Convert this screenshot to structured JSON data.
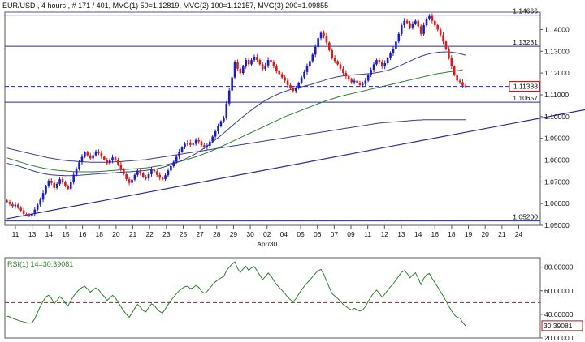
{
  "header": {
    "symbol": "EUR/USD",
    "timeframe": "4 hours",
    "bars": "# 171 / 401",
    "ma1": "MVG(1) 50=1.12819",
    "ma2": "MVG(2) 100=1.12157",
    "ma3": "MVG(3) 200=1.09855"
  },
  "colors": {
    "up": "#1c1cc8",
    "down": "#d81c1c",
    "ma50": "#3b3b9a",
    "ma100": "#2f7d2f",
    "ma200": "#3a3a8f",
    "rsi": "#2f7d2f",
    "hline": "#2a2a9a",
    "rsi_ref": "#c01010"
  },
  "chart_data": [
    {
      "type": "candlestick",
      "title": "",
      "ylim": [
        1.05,
        1.148
      ],
      "y_ticks": [
        "1.14000",
        "1.13000",
        "1.12000",
        "1.11000",
        "1.10000",
        "1.09000",
        "1.08000",
        "1.07000",
        "1.06000",
        "1.05000"
      ],
      "x_ticks": [
        "11",
        "13",
        "14",
        "15",
        "16",
        "18",
        "20",
        "21",
        "22",
        "23",
        "25",
        "27",
        "28",
        "29",
        "30",
        "02",
        "04",
        "05",
        "06",
        "07",
        "09",
        "11",
        "12",
        "13",
        "14",
        "16",
        "18",
        "19",
        "20",
        "21",
        "24"
      ],
      "x_sublabel": "Apr/30",
      "levels": [
        {
          "label": "1.14666",
          "value": 1.14666,
          "style": "solid"
        },
        {
          "label": "1.13231",
          "value": 1.13231,
          "style": "solid"
        },
        {
          "label": "1.11388",
          "value": 1.11388,
          "style": "dashed",
          "boxed": true
        },
        {
          "label": "1.10657",
          "value": 1.10657,
          "style": "solid"
        },
        {
          "label": "1.05200",
          "value": 1.052,
          "style": "solid"
        }
      ],
      "trendline": {
        "x": [
          0,
          222
        ],
        "y": [
          1.053,
          1.1065
        ]
      },
      "close": [
        1.0608,
        1.0598,
        1.0588,
        1.0595,
        1.058,
        1.0568,
        1.0552,
        1.0548,
        1.0545,
        1.0552,
        1.0572,
        1.0595,
        1.0618,
        1.0648,
        1.068,
        1.0705,
        1.0695,
        1.0672,
        1.069,
        1.0712,
        1.07,
        1.068,
        1.0668,
        1.07,
        1.0732,
        1.076,
        1.079,
        1.0815,
        1.0835,
        1.0822,
        1.0808,
        1.0822,
        1.084,
        1.0832,
        1.0815,
        1.0802,
        1.0785,
        1.0798,
        1.0812,
        1.08,
        1.078,
        1.0758,
        1.0735,
        1.0712,
        1.0695,
        1.071,
        1.0732,
        1.0752,
        1.074,
        1.0722,
        1.0715,
        1.0735,
        1.0755,
        1.0748,
        1.0732,
        1.0718,
        1.0712,
        1.073,
        1.0752,
        1.0772,
        1.0792,
        1.0815,
        1.0838,
        1.0858,
        1.0875,
        1.088,
        1.087,
        1.0875,
        1.0892,
        1.0885,
        1.0868,
        1.0858,
        1.0865,
        1.0885,
        1.0908,
        1.0932,
        1.0955,
        1.0978,
        1.0995,
        1.106,
        1.112,
        1.118,
        1.125,
        1.122,
        1.12,
        1.123,
        1.126,
        1.124,
        1.126,
        1.1275,
        1.126,
        1.124,
        1.1218,
        1.1235,
        1.126,
        1.125,
        1.123,
        1.121,
        1.1195,
        1.118,
        1.1165,
        1.1145,
        1.113,
        1.1118,
        1.113,
        1.1155,
        1.118,
        1.1205,
        1.123,
        1.1255,
        1.1285,
        1.132,
        1.136,
        1.1385,
        1.137,
        1.134,
        1.1305,
        1.127,
        1.1255,
        1.124,
        1.122,
        1.12,
        1.1185,
        1.117,
        1.1158,
        1.1165,
        1.1155,
        1.1145,
        1.115,
        1.1165,
        1.119,
        1.1215,
        1.124,
        1.126,
        1.125,
        1.123,
        1.1245,
        1.1268,
        1.129,
        1.1312,
        1.1345,
        1.138,
        1.142,
        1.144,
        1.143,
        1.141,
        1.1425,
        1.144,
        1.1415,
        1.138,
        1.142,
        1.145,
        1.1462,
        1.144,
        1.142,
        1.14,
        1.1375,
        1.1345,
        1.131,
        1.127,
        1.123,
        1.119,
        1.1165,
        1.1158,
        1.1142,
        1.1139
      ],
      "ma50": [
        1.0785,
        1.0782,
        1.0779,
        1.0776,
        1.0773,
        1.0769,
        1.0765,
        1.0761,
        1.0756,
        1.0752,
        1.0748,
        1.0744,
        1.0741,
        1.0738,
        1.0736,
        1.0734,
        1.0732,
        1.0731,
        1.073,
        1.0729,
        1.0729,
        1.0728,
        1.0728,
        1.0728,
        1.0729,
        1.0729,
        1.073,
        1.0731,
        1.0732,
        1.0733,
        1.0734,
        1.0735,
        1.0736,
        1.0737,
        1.0738,
        1.0738,
        1.0739,
        1.074,
        1.0741,
        1.0742,
        1.0743,
        1.0744,
        1.0745,
        1.0746,
        1.0746,
        1.0747,
        1.0748,
        1.0749,
        1.075,
        1.0751,
        1.0752,
        1.0754,
        1.0756,
        1.0758,
        1.076,
        1.0763,
        1.0766,
        1.077,
        1.0774,
        1.0778,
        1.0783,
        1.0788,
        1.0793,
        1.0798,
        1.0804,
        1.081,
        1.0816,
        1.0823,
        1.083,
        1.0838,
        1.0846,
        1.0855,
        1.0864,
        1.0873,
        1.0883,
        1.0893,
        1.0903,
        1.0913,
        1.0924,
        1.0935,
        1.0946,
        1.0957,
        1.0968,
        1.0979,
        1.099,
        1.1,
        1.101,
        1.102,
        1.103,
        1.104,
        1.1049,
        1.1058,
        1.1066,
        1.1074,
        1.1081,
        1.1088,
        1.1094,
        1.11,
        1.1106,
        1.1111,
        1.1116,
        1.112,
        1.1124,
        1.1128,
        1.1131,
        1.1134,
        1.1137,
        1.114,
        1.1143,
        1.1146,
        1.115,
        1.1154,
        1.1158,
        1.1162,
        1.1166,
        1.117,
        1.1174,
        1.1177,
        1.118,
        1.1183,
        1.1185,
        1.1187,
        1.1189,
        1.119,
        1.1191,
        1.1192,
        1.1193,
        1.1194,
        1.1195,
        1.1196,
        1.1197,
        1.1198,
        1.12,
        1.1202,
        1.1204,
        1.1207,
        1.121,
        1.1213,
        1.1217,
        1.1221,
        1.1226,
        1.1231,
        1.1237,
        1.1243,
        1.1249,
        1.1255,
        1.1261,
        1.1267,
        1.1272,
        1.1277,
        1.1281,
        1.1285,
        1.1288,
        1.1291,
        1.1293,
        1.1295,
        1.1296,
        1.1297,
        1.1297,
        1.1297,
        1.1296,
        1.1294,
        1.1292,
        1.1289,
        1.1286,
        1.1282
      ],
      "ma100": [
        1.081,
        1.0806,
        1.0802,
        1.0798,
        1.0794,
        1.079,
        1.0786,
        1.0782,
        1.0778,
        1.0775,
        1.0772,
        1.0769,
        1.0766,
        1.0763,
        1.0761,
        1.0759,
        1.0757,
        1.0755,
        1.0753,
        1.0752,
        1.0751,
        1.075,
        1.0749,
        1.0748,
        1.0747,
        1.0747,
        1.0746,
        1.0746,
        1.0746,
        1.0746,
        1.0746,
        1.0746,
        1.0747,
        1.0747,
        1.0748,
        1.0749,
        1.075,
        1.0751,
        1.0752,
        1.0753,
        1.0754,
        1.0755,
        1.0756,
        1.0757,
        1.0758,
        1.0759,
        1.076,
        1.0761,
        1.0762,
        1.0763,
        1.0764,
        1.0766,
        1.0768,
        1.077,
        1.0772,
        1.0774,
        1.0776,
        1.0778,
        1.0781,
        1.0784,
        1.0787,
        1.079,
        1.0793,
        1.0796,
        1.0799,
        1.0803,
        1.0807,
        1.0811,
        1.0815,
        1.0819,
        1.0824,
        1.0829,
        1.0834,
        1.0839,
        1.0844,
        1.0849,
        1.0855,
        1.0861,
        1.0867,
        1.0873,
        1.0879,
        1.0885,
        1.0891,
        1.0897,
        1.0903,
        1.0909,
        1.0915,
        1.0921,
        1.0927,
        1.0933,
        1.0939,
        1.0945,
        1.0951,
        1.0957,
        1.0963,
        1.0969,
        1.0975,
        1.0981,
        1.0987,
        1.0993,
        1.0999,
        1.1004,
        1.1009,
        1.1014,
        1.1019,
        1.1024,
        1.1029,
        1.1034,
        1.1039,
        1.1044,
        1.1049,
        1.1054,
        1.1059,
        1.1064,
        1.1069,
        1.1073,
        1.1077,
        1.1081,
        1.1085,
        1.1089,
        1.1093,
        1.1096,
        1.1099,
        1.1102,
        1.1105,
        1.1108,
        1.1111,
        1.1114,
        1.1117,
        1.112,
        1.1123,
        1.1126,
        1.1129,
        1.1132,
        1.1135,
        1.1138,
        1.1141,
        1.1144,
        1.1147,
        1.115,
        1.1153,
        1.1156,
        1.1159,
        1.1162,
        1.1165,
        1.1168,
        1.1171,
        1.1174,
        1.1177,
        1.118,
        1.1183,
        1.1186,
        1.1189,
        1.1192,
        1.1195,
        1.1197,
        1.1199,
        1.1201,
        1.1203,
        1.1205,
        1.1207,
        1.1209,
        1.1211,
        1.1213,
        1.1215
      ],
      "ma200": [
        1.0855,
        1.0852,
        1.0849,
        1.0846,
        1.0843,
        1.084,
        1.0837,
        1.0834,
        1.0831,
        1.0828,
        1.0825,
        1.0822,
        1.0819,
        1.0816,
        1.0813,
        1.081,
        1.0808,
        1.0806,
        1.0804,
        1.0802,
        1.08,
        1.0798,
        1.0797,
        1.0796,
        1.0795,
        1.0794,
        1.0793,
        1.0792,
        1.0791,
        1.0791,
        1.079,
        1.079,
        1.079,
        1.079,
        1.079,
        1.079,
        1.079,
        1.0791,
        1.0791,
        1.0792,
        1.0792,
        1.0793,
        1.0794,
        1.0795,
        1.0796,
        1.0797,
        1.0798,
        1.0799,
        1.08,
        1.0801,
        1.0802,
        1.0804,
        1.0806,
        1.0808,
        1.081,
        1.0812,
        1.0814,
        1.0816,
        1.0818,
        1.082,
        1.0822,
        1.0824,
        1.0826,
        1.0828,
        1.083,
        1.0832,
        1.0834,
        1.0836,
        1.0838,
        1.084,
        1.0842,
        1.0844,
        1.0846,
        1.0848,
        1.085,
        1.0852,
        1.0854,
        1.0856,
        1.0858,
        1.086,
        1.0862,
        1.0864,
        1.0866,
        1.0868,
        1.087,
        1.0872,
        1.0874,
        1.0876,
        1.0878,
        1.088,
        1.0882,
        1.0884,
        1.0886,
        1.0888,
        1.089,
        1.0892,
        1.0894,
        1.0896,
        1.0898,
        1.09,
        1.0902,
        1.0904,
        1.0906,
        1.0908,
        1.091,
        1.0912,
        1.0914,
        1.0916,
        1.0918,
        1.092,
        1.0922,
        1.0924,
        1.0926,
        1.0928,
        1.093,
        1.0932,
        1.0934,
        1.0936,
        1.0938,
        1.094,
        1.0942,
        1.0944,
        1.0946,
        1.0948,
        1.095,
        1.0952,
        1.0954,
        1.0956,
        1.0958,
        1.096,
        1.0962,
        1.0964,
        1.0966,
        1.0968,
        1.097,
        1.0971,
        1.0972,
        1.0973,
        1.0974,
        1.0975,
        1.0976,
        1.0977,
        1.0978,
        1.0979,
        1.098,
        1.0981,
        1.0982,
        1.0983,
        1.0984,
        1.0984,
        1.0985,
        1.0985,
        1.0985,
        1.0985,
        1.0985,
        1.0985,
        1.0985,
        1.0985,
        1.0985,
        1.0985,
        1.0985,
        1.0985,
        1.0985,
        1.0985,
        1.0985,
        1.0985
      ]
    },
    {
      "type": "line",
      "title": "RSI(1) 14=30.39081",
      "ylim": [
        20,
        88
      ],
      "y_ticks": [
        "80.00000",
        "60.00000",
        "40.00000",
        "20.00000"
      ],
      "reference_level": 50,
      "last_value_label": "30.39081",
      "values": [
        38.5,
        37.8,
        36.7,
        35.8,
        35.0,
        34.3,
        33.6,
        33.0,
        32.5,
        32.9,
        36.2,
        41.5,
        46.8,
        51.2,
        54.8,
        56.2,
        53.5,
        49.0,
        51.8,
        55.0,
        53.0,
        49.5,
        47.3,
        51.8,
        55.6,
        58.4,
        61.0,
        62.8,
        63.9,
        61.5,
        58.8,
        60.7,
        62.5,
        60.9,
        57.6,
        55.0,
        51.8,
        53.9,
        56.1,
        54.0,
        50.3,
        46.6,
        43.0,
        40.0,
        37.6,
        41.0,
        45.2,
        48.5,
        46.2,
        43.2,
        42.0,
        45.8,
        49.0,
        47.5,
        44.6,
        42.3,
        41.2,
        44.6,
        48.4,
        51.7,
        54.6,
        57.5,
        60.0,
        62.0,
        63.5,
        63.9,
        61.8,
        62.6,
        64.6,
        63.0,
        59.7,
        57.9,
        59.3,
        62.4,
        65.1,
        67.5,
        69.4,
        71.0,
        72.0,
        77.0,
        80.0,
        82.5,
        84.5,
        78.8,
        75.5,
        78.5,
        80.8,
        77.2,
        79.4,
        80.5,
        77.0,
        73.2,
        69.4,
        72.0,
        75.0,
        72.6,
        68.8,
        65.3,
        62.7,
        60.3,
        57.8,
        54.7,
        52.4,
        50.6,
        53.3,
        57.2,
        60.7,
        63.8,
        66.6,
        69.2,
        71.9,
        74.7,
        77.0,
        78.1,
        74.0,
        68.5,
        62.8,
        57.6,
        55.6,
        53.6,
        51.0,
        48.5,
        46.7,
        45.0,
        43.7,
        45.2,
        44.0,
        42.8,
        43.9,
        46.6,
        51.0,
        54.8,
        58.2,
        60.5,
        58.0,
        54.5,
        57.2,
        60.5,
        63.4,
        65.9,
        69.2,
        72.4,
        75.7,
        77.1,
        74.7,
        71.0,
        73.3,
        75.2,
        70.6,
        65.2,
        70.4,
        73.6,
        74.7,
        70.5,
        66.7,
        63.3,
        59.5,
        55.5,
        51.3,
        47.0,
        43.0,
        39.5,
        37.5,
        36.8,
        33.2,
        30.39
      ]
    }
  ]
}
